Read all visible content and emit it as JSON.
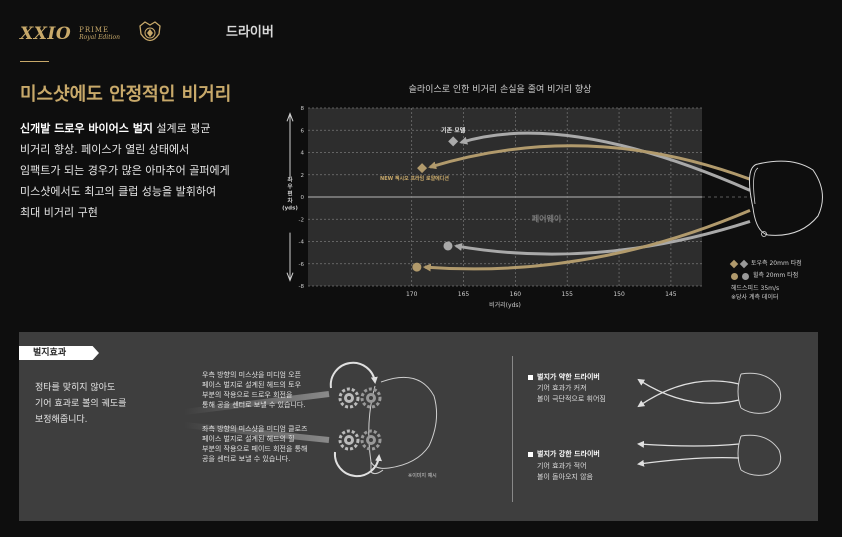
{
  "brand": {
    "logo_text": "XXIO",
    "logo_line1": "PRIME",
    "logo_line2": "Royal Edition",
    "gold": "#c8a96a"
  },
  "category": "드라이버",
  "headline": "미스샷에도 안정적인 비거리",
  "body": {
    "bold": "신개발 드로우 바이어스 벌지",
    "line1_rest": " 설계로 평균",
    "lines": [
      "비거리 향상. 페이스가 열린 상태에서",
      "임팩트가 되는 경우가 많은 아마추어 골퍼에게",
      "미스샷에서도 최고의 클럽 성능을 발휘하여",
      "최대 비거리 구현"
    ]
  },
  "chart_title": "슬라이스로 인한 비거리 손실을 줄여 비거리 향상",
  "chart_data": {
    "type": "scatter",
    "xlabel": "비거리(yds)",
    "ylabel": "좌우편차(yds)",
    "xlim": [
      180,
      142
    ],
    "ylim": [
      -8,
      8
    ],
    "x_ticks": [
      "170",
      "165",
      "160",
      "155",
      "150",
      "145"
    ],
    "x_tick_values": [
      170,
      165,
      160,
      155,
      150,
      145
    ],
    "y_ticks": [
      "8",
      "6",
      "4",
      "2",
      "0",
      "-2",
      "-4",
      "-6",
      "-8"
    ],
    "y_tick_values": [
      8,
      6,
      4,
      2,
      0,
      -2,
      -4,
      -6,
      -8
    ],
    "center_label": "페어웨이",
    "series": [
      {
        "marker": "diamond",
        "color": "#a9a9a9",
        "points": [
          {
            "x": 166,
            "y": 5
          }
        ]
      },
      {
        "marker": "diamond",
        "color": "#b19a6c",
        "points": [
          {
            "x": 169,
            "y": 2.6
          }
        ]
      },
      {
        "marker": "circle",
        "color": "#a9a9a9",
        "points": [
          {
            "x": 166.5,
            "y": -4.4
          }
        ]
      },
      {
        "marker": "circle",
        "color": "#b19a6c",
        "points": [
          {
            "x": 169.5,
            "y": -6.3
          }
        ]
      }
    ],
    "annotations": {
      "old_model": "기존 모델",
      "new_model": "NEW 젝시오 프라임 로얄에디션"
    }
  },
  "legend": {
    "toe": "토우측 20mm 타점",
    "heel": "힐측 20mm 타점",
    "note1": "헤드스피드 35m/s",
    "note2": "※당사 계측 데이터"
  },
  "panel": {
    "tag": "벌지효과",
    "lead": [
      "정타를 맞히지 않아도",
      "기어 효과로 볼의 궤도를",
      "보정해줍니다."
    ],
    "top_caption": [
      "우측 방향의 미스샷을 미디엄 오픈",
      "페이스 벌지로 설계된 헤드의 토우",
      "부분의 작용으로 드로우 회전을",
      "통해 공을 센터로 보낼 수 있습니다."
    ],
    "bottom_caption": [
      "좌측 방향의 미스샷을 미디엄 클로즈",
      "페이스 벌지로 설계된 헤드의 힐",
      "부분의 작용으로 페이드 회전을 통해",
      "공을 센터로 보낼 수 있습니다."
    ],
    "image_note": "※이미지 예시",
    "weak": {
      "title": "벌지가 약한 드라이버",
      "desc": [
        "기어 효과가 커져",
        "볼이 극단적으로 휘어짐"
      ]
    },
    "strong": {
      "title": "벌지가 강한 드라이버",
      "desc": [
        "기어 효과가 적어",
        "볼이 돌아오지 않음"
      ]
    }
  }
}
